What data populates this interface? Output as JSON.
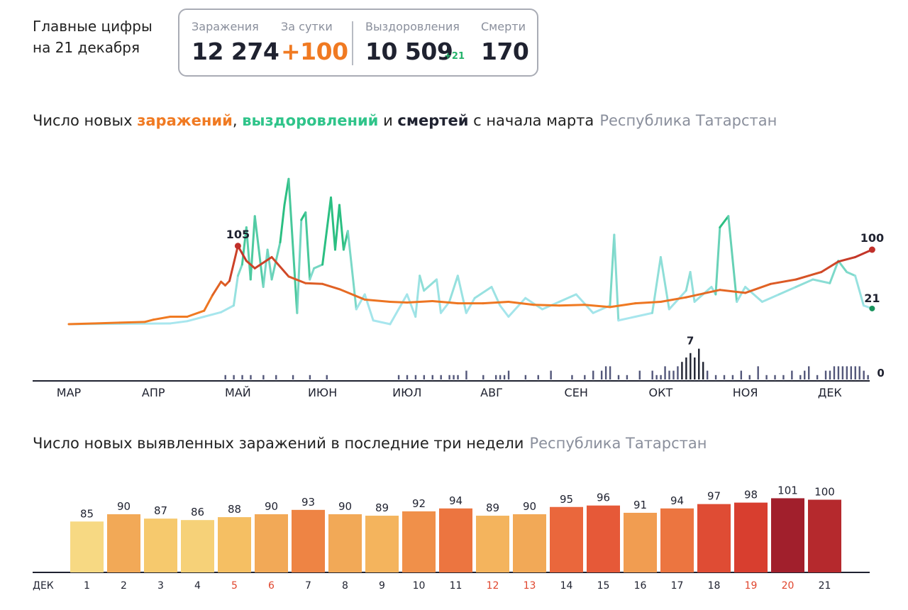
{
  "header": {
    "title_line1": "Главные цифры",
    "title_line2": "на 21 декабря"
  },
  "stats": {
    "infections": {
      "label": "Заражения",
      "value": "12 274"
    },
    "daily": {
      "label": "За сутки",
      "value": "+100"
    },
    "recoveries": {
      "label": "Выздоровления",
      "value": "10 509",
      "delta": "+21"
    },
    "deaths": {
      "label": "Смерти",
      "value": "170"
    }
  },
  "chart1_title": {
    "prefix": "Число новых ",
    "infections_word": "заражений",
    "sep": ", ",
    "recoveries_word": "выздоровлений",
    "and": " и ",
    "deaths_word": "смертей",
    "suffix": " с начала марта",
    "region": "Республика Татарстан"
  },
  "chart2_title": {
    "text": "Число новых выявленных заражений в последние три недели",
    "region": "Республика Татарстан"
  },
  "colors": {
    "infections": "#f07a22",
    "infections_peak": "#c0302a",
    "recoveries_dark": "#2bbf82",
    "recoveries_light": "#a8e6ee",
    "deaths": "#53577a",
    "deaths_peak": "#1f2230"
  },
  "chart_data": [
    {
      "type": "line",
      "title": "Число новых заражений, выздоровлений и смертей с начала марта",
      "x_tick_labels": [
        "МАР",
        "АПР",
        "МАЙ",
        "ИЮН",
        "ИЮЛ",
        "АВГ",
        "СЕН",
        "ОКТ",
        "НОЯ",
        "ДЕК"
      ],
      "annotations": [
        {
          "series": "infections",
          "label": "105",
          "month_index": 2.0,
          "value": 105
        },
        {
          "series": "infections",
          "label": "100",
          "month_index": 9.5,
          "value": 100
        },
        {
          "series": "recoveries",
          "label": "21",
          "month_index": 9.5,
          "value": 21
        },
        {
          "series": "deaths",
          "label": "7",
          "month_index": 7.35,
          "value": 7
        },
        {
          "series": "deaths",
          "label": "0",
          "month_index": 9.5,
          "value": 0
        }
      ],
      "series": [
        {
          "name": "заражения",
          "month_index": [
            0,
            0.3,
            0.6,
            0.9,
            1.0,
            1.2,
            1.4,
            1.6,
            1.7,
            1.8,
            1.85,
            1.9,
            2.0,
            2.1,
            2.2,
            2.4,
            2.6,
            2.8,
            3.0,
            3.2,
            3.5,
            3.8,
            4.0,
            4.3,
            4.6,
            4.9,
            5.2,
            5.5,
            5.8,
            6.1,
            6.4,
            6.7,
            7.0,
            7.3,
            7.5,
            7.7,
            8.0,
            8.3,
            8.6,
            8.9,
            9.1,
            9.3,
            9.5
          ],
          "values": [
            0,
            1,
            2,
            3,
            6,
            10,
            10,
            18,
            39,
            57,
            52,
            58,
            105,
            85,
            75,
            90,
            64,
            55,
            54,
            47,
            33,
            30,
            29,
            31,
            28,
            28,
            30,
            26,
            25,
            26,
            23,
            28,
            30,
            36,
            41,
            46,
            42,
            54,
            60,
            70,
            84,
            90,
            100
          ]
        },
        {
          "name": "выздоровления",
          "month_index": [
            0,
            1.2,
            1.4,
            1.6,
            1.8,
            1.95,
            2.0,
            2.05,
            2.1,
            2.15,
            2.2,
            2.3,
            2.35,
            2.4,
            2.5,
            2.55,
            2.6,
            2.7,
            2.75,
            2.8,
            2.85,
            2.9,
            3.0,
            3.1,
            3.15,
            3.2,
            3.25,
            3.3,
            3.4,
            3.5,
            3.6,
            3.8,
            4.0,
            4.1,
            4.15,
            4.2,
            4.35,
            4.4,
            4.5,
            4.6,
            4.7,
            4.8,
            5.0,
            5.1,
            5.2,
            5.4,
            5.6,
            5.8,
            6.0,
            6.2,
            6.4,
            6.45,
            6.5,
            6.7,
            6.9,
            7.0,
            7.1,
            7.3,
            7.35,
            7.4,
            7.6,
            7.65,
            7.7,
            7.8,
            7.9,
            8.0,
            8.2,
            8.4,
            8.6,
            8.8,
            9.0,
            9.1,
            9.2,
            9.3,
            9.4,
            9.5
          ],
          "values": [
            0,
            1,
            4,
            10,
            16,
            25,
            65,
            80,
            130,
            60,
            145,
            50,
            100,
            60,
            110,
            160,
            195,
            15,
            140,
            150,
            60,
            75,
            80,
            170,
            100,
            160,
            100,
            125,
            20,
            40,
            5,
            0,
            40,
            10,
            65,
            45,
            60,
            15,
            30,
            65,
            15,
            35,
            50,
            25,
            10,
            35,
            20,
            30,
            40,
            15,
            25,
            120,
            5,
            10,
            15,
            90,
            20,
            45,
            70,
            30,
            50,
            40,
            130,
            145,
            30,
            50,
            30,
            40,
            50,
            60,
            55,
            85,
            70,
            65,
            25,
            21
          ]
        },
        {
          "name": "смерти",
          "month_index": [
            1.85,
            1.95,
            2.05,
            2.15,
            2.3,
            2.45,
            2.65,
            2.85,
            3.05,
            3.9,
            4.0,
            4.1,
            4.2,
            4.3,
            4.4,
            4.5,
            4.55,
            4.6,
            4.7,
            4.9,
            5.05,
            5.1,
            5.15,
            5.2,
            5.4,
            5.55,
            5.7,
            5.95,
            6.1,
            6.2,
            6.3,
            6.35,
            6.4,
            6.5,
            6.6,
            6.75,
            6.9,
            6.95,
            7.0,
            7.05,
            7.1,
            7.15,
            7.2,
            7.25,
            7.3,
            7.35,
            7.4,
            7.45,
            7.5,
            7.55,
            7.65,
            7.75,
            7.85,
            7.95,
            8.05,
            8.15,
            8.25,
            8.35,
            8.45,
            8.55,
            8.65,
            8.7,
            8.75,
            8.85,
            8.95,
            9.0,
            9.05,
            9.1,
            9.15,
            9.2,
            9.25,
            9.3,
            9.35,
            9.4,
            9.45,
            9.5
          ],
          "values": [
            1,
            1,
            1,
            1,
            1,
            1,
            1,
            1,
            1,
            1,
            1,
            1,
            1,
            1,
            1,
            1,
            1,
            1,
            2,
            1,
            1,
            1,
            1,
            2,
            1,
            1,
            2,
            1,
            1,
            2,
            2,
            3,
            3,
            1,
            1,
            2,
            2,
            1,
            1,
            3,
            2,
            2,
            3,
            4,
            5,
            6,
            5,
            7,
            4,
            2,
            1,
            1,
            1,
            2,
            1,
            3,
            1,
            1,
            1,
            2,
            1,
            2,
            3,
            1,
            2,
            2,
            3,
            3,
            3,
            3,
            3,
            3,
            3,
            2,
            1,
            0
          ]
        }
      ]
    },
    {
      "type": "bar",
      "title": "Число новых выявленных заражений в последние три недели",
      "axis_label": "ДЕК",
      "categories": [
        "1",
        "2",
        "3",
        "4",
        "5",
        "6",
        "7",
        "8",
        "9",
        "10",
        "11",
        "12",
        "13",
        "14",
        "15",
        "16",
        "17",
        "18",
        "19",
        "20",
        "21"
      ],
      "values": [
        85,
        90,
        87,
        86,
        88,
        90,
        93,
        90,
        89,
        92,
        94,
        89,
        90,
        95,
        96,
        91,
        94,
        97,
        98,
        101,
        100
      ],
      "weekend": [
        false,
        false,
        false,
        false,
        true,
        true,
        false,
        false,
        false,
        false,
        false,
        true,
        true,
        false,
        false,
        false,
        false,
        false,
        true,
        true,
        false
      ],
      "ylim": [
        0,
        105
      ]
    }
  ]
}
